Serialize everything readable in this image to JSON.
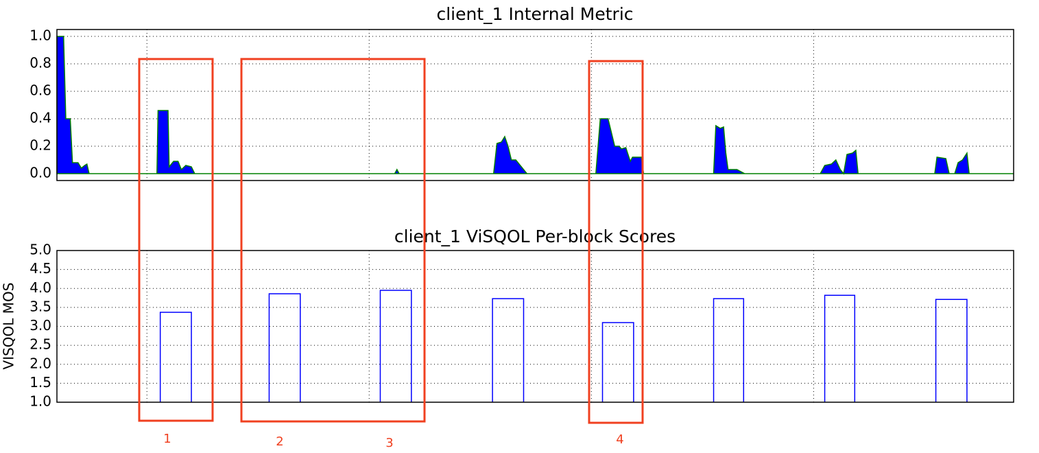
{
  "chart_data": [
    {
      "type": "area",
      "title": "client_1 Internal Metric",
      "color": "#0000ff",
      "edge_color": "#008000",
      "x": [
        -8.1,
        -7.5,
        -7.3,
        -6.9,
        -6.7,
        -6.2,
        -5.9,
        -5.6,
        -5.4,
        -5.2,
        0.9,
        1.0,
        1.9,
        2.0,
        2.4,
        2.8,
        3.1,
        3.5,
        4.0,
        4.3,
        22.3,
        22.5,
        22.7,
        31.2,
        31.5,
        31.9,
        32.2,
        32.5,
        32.8,
        33.2,
        33.7,
        34.2,
        40.4,
        40.8,
        41.5,
        42.1,
        42.5,
        42.7,
        43.1,
        43.5,
        43.7,
        44.5,
        44.7,
        51.0,
        51.2,
        51.6,
        51.9,
        52.1,
        52.3,
        53.1,
        53.8,
        60.6,
        61.0,
        61.6,
        62.0,
        62.4,
        62.7,
        63.0,
        63.5,
        63.8,
        64.0,
        70.9,
        71.1,
        71.9,
        72.2,
        72.7,
        73.0,
        73.4,
        73.8,
        74.0,
        78.0
      ],
      "values": [
        1.0,
        1.0,
        0.4,
        0.4,
        0.08,
        0.08,
        0.04,
        0.06,
        0.07,
        0.0,
        0.0,
        0.46,
        0.46,
        0.05,
        0.09,
        0.09,
        0.03,
        0.06,
        0.05,
        0.0,
        0.0,
        0.03,
        0.0,
        0.0,
        0.22,
        0.23,
        0.27,
        0.2,
        0.1,
        0.1,
        0.05,
        0.0,
        0.0,
        0.4,
        0.4,
        0.2,
        0.2,
        0.18,
        0.19,
        0.09,
        0.12,
        0.12,
        0.0,
        0.0,
        0.35,
        0.33,
        0.34,
        0.15,
        0.03,
        0.03,
        0.0,
        0.0,
        0.06,
        0.07,
        0.1,
        0.03,
        0.0,
        0.14,
        0.15,
        0.17,
        0.0,
        0.0,
        0.12,
        0.11,
        0.0,
        0.0,
        0.08,
        0.1,
        0.15,
        0.0,
        0.0
      ],
      "xlim": [
        -8.1,
        78
      ],
      "xticks": [
        0,
        20,
        40,
        60
      ],
      "ylim": [
        -0.05,
        1.05
      ],
      "yticks": [
        {
          "value": 0,
          "label": "0.0"
        },
        0.2,
        0.4,
        0.6,
        0.8,
        {
          "value": 1,
          "label": "1.0"
        }
      ],
      "grid": true
    },
    {
      "type": "bar",
      "title": "client_1 ViSQOL Per-block Scores",
      "y_label": "VISQOL MOS",
      "color": "#0000ff",
      "x": [
        1.2,
        11.0,
        21.0,
        31.1,
        41.0,
        51.0,
        61.0,
        71.0
      ],
      "x_end": [
        4.0,
        13.8,
        23.8,
        33.9,
        43.8,
        53.7,
        63.7,
        73.8
      ],
      "values": [
        3.37,
        3.86,
        3.95,
        3.73,
        3.1,
        3.73,
        3.82,
        3.71
      ],
      "xlim": [
        -8.1,
        78
      ],
      "xticks": [
        0,
        20,
        40,
        60
      ],
      "ylim": [
        1,
        5
      ],
      "yticks": [
        {
          "value": 1,
          "label": "1.0"
        },
        1.5,
        {
          "value": 2,
          "label": "2.0"
        },
        2.5,
        {
          "value": 3,
          "label": "3.0"
        },
        3.5,
        {
          "value": 4,
          "label": "4.0"
        },
        4.5,
        {
          "value": 5,
          "label": "5.0"
        }
      ],
      "grid": true
    }
  ],
  "annotations": [
    "1",
    "2",
    "3",
    "4"
  ]
}
